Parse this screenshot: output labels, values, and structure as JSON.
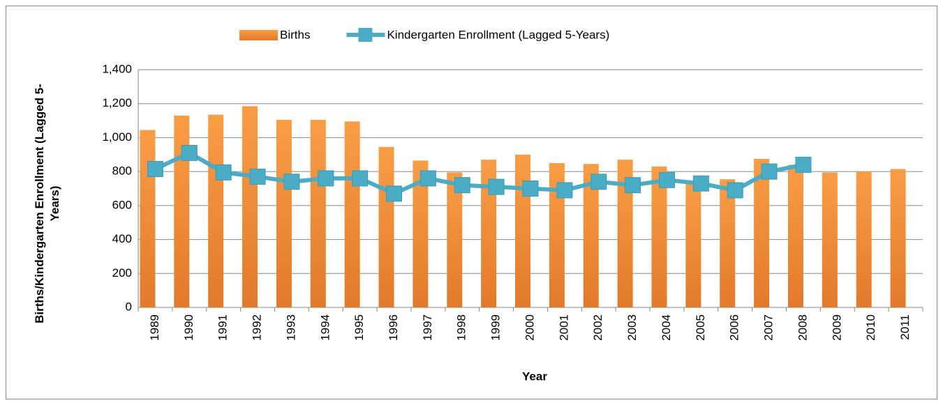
{
  "chart_data": {
    "type": "combo",
    "x_label": "Year",
    "y_label": "Births/Kindergarten Enrollment (Lagged 5-Years)",
    "categories": [
      "1989",
      "1990",
      "1991",
      "1992",
      "1993",
      "1994",
      "1995",
      "1996",
      "1997",
      "1998",
      "1999",
      "2000",
      "2001",
      "2002",
      "2003",
      "2004",
      "2005",
      "2006",
      "2007",
      "2008",
      "2009",
      "2010",
      "2011"
    ],
    "series": [
      {
        "name": "Births",
        "type": "bar",
        "color": "#f7963c",
        "values": [
          1045,
          1130,
          1135,
          1185,
          1105,
          1105,
          1095,
          945,
          865,
          795,
          870,
          900,
          850,
          845,
          870,
          830,
          735,
          755,
          875,
          840,
          795,
          800,
          815
        ]
      },
      {
        "name": "Kindergarten Enrollment (Lagged 5-Years)",
        "type": "line",
        "color": "#4bacc6",
        "values": [
          815,
          910,
          795,
          770,
          740,
          760,
          760,
          670,
          760,
          720,
          710,
          700,
          690,
          740,
          720,
          750,
          730,
          690,
          800,
          840,
          null,
          null,
          null
        ]
      }
    ],
    "ylim": [
      0,
      1400
    ],
    "yticks": [
      0,
      200,
      400,
      600,
      800,
      {
        "value": 1000,
        "label": "1,000"
      },
      {
        "value": 1200,
        "label": "1,200"
      },
      {
        "value": 1400,
        "label": "1,400"
      }
    ],
    "grid": true,
    "legend": "top"
  }
}
